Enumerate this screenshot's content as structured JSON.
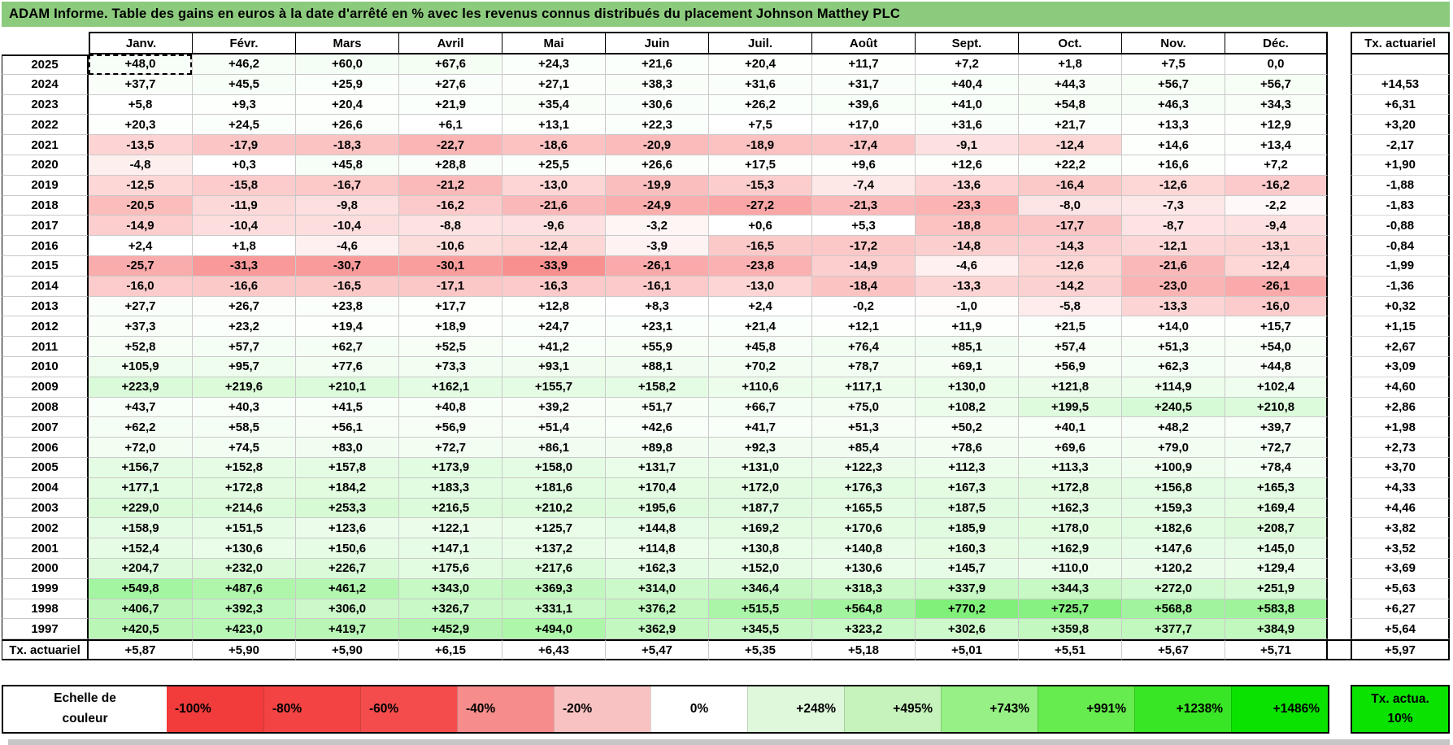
{
  "title": "ADAM Informe. Table des gains en euros à la date d'arrêté en % avec les revenus connus distribués du placement Johnson Matthey PLC",
  "chart_data": {
    "type": "heatmap",
    "title": "ADAM Informe. Table des gains en euros à la date d'arrêté en % avec les revenus connus distribués du placement Johnson Matthey PLC",
    "columns": [
      "Janv.",
      "Févr.",
      "Mars",
      "Avril",
      "Mai",
      "Juin",
      "Juil.",
      "Août",
      "Sept.",
      "Oct.",
      "Nov.",
      "Déc."
    ],
    "tx_column_header": "Tx. actuariel",
    "rows": [
      {
        "year": "2025",
        "values": [
          "+48,0",
          "+46,2",
          "+60,0",
          "+67,6",
          "+24,3",
          "+21,6",
          "+20,4",
          "+11,7",
          "+7,2",
          "+1,8",
          "+7,5",
          "0,0"
        ],
        "tx": ""
      },
      {
        "year": "2024",
        "values": [
          "+37,7",
          "+45,5",
          "+25,9",
          "+27,6",
          "+27,1",
          "+38,3",
          "+31,6",
          "+31,7",
          "+40,4",
          "+44,3",
          "+56,7",
          "+56,7"
        ],
        "tx": "+14,53"
      },
      {
        "year": "2023",
        "values": [
          "+5,8",
          "+9,3",
          "+20,4",
          "+21,9",
          "+35,4",
          "+30,6",
          "+26,2",
          "+39,6",
          "+41,0",
          "+54,8",
          "+46,3",
          "+34,3"
        ],
        "tx": "+6,31"
      },
      {
        "year": "2022",
        "values": [
          "+20,3",
          "+24,5",
          "+26,6",
          "+6,1",
          "+13,1",
          "+22,3",
          "+7,5",
          "+17,0",
          "+31,6",
          "+21,7",
          "+13,3",
          "+12,9"
        ],
        "tx": "+3,20"
      },
      {
        "year": "2021",
        "values": [
          "-13,5",
          "-17,9",
          "-18,3",
          "-22,7",
          "-18,6",
          "-20,9",
          "-18,9",
          "-17,4",
          "-9,1",
          "-12,4",
          "+14,6",
          "+13,4"
        ],
        "tx": "-2,17"
      },
      {
        "year": "2020",
        "values": [
          "-4,8",
          "+0,3",
          "+45,8",
          "+28,8",
          "+25,5",
          "+26,6",
          "+17,5",
          "+9,6",
          "+12,6",
          "+22,2",
          "+16,6",
          "+7,2"
        ],
        "tx": "+1,90"
      },
      {
        "year": "2019",
        "values": [
          "-12,5",
          "-15,8",
          "-16,7",
          "-21,2",
          "-13,0",
          "-19,9",
          "-15,3",
          "-7,4",
          "-13,6",
          "-16,4",
          "-12,6",
          "-16,2"
        ],
        "tx": "-1,88"
      },
      {
        "year": "2018",
        "values": [
          "-20,5",
          "-11,9",
          "-9,8",
          "-16,2",
          "-21,6",
          "-24,9",
          "-27,2",
          "-21,3",
          "-23,3",
          "-8,0",
          "-7,3",
          "-2,2"
        ],
        "tx": "-1,83"
      },
      {
        "year": "2017",
        "values": [
          "-14,9",
          "-10,4",
          "-10,4",
          "-8,8",
          "-9,6",
          "-3,2",
          "+0,6",
          "+5,3",
          "-18,8",
          "-17,7",
          "-8,7",
          "-9,4"
        ],
        "tx": "-0,88"
      },
      {
        "year": "2016",
        "values": [
          "+2,4",
          "+1,8",
          "-4,6",
          "-10,6",
          "-12,4",
          "-3,9",
          "-16,5",
          "-17,2",
          "-14,8",
          "-14,3",
          "-12,1",
          "-13,1"
        ],
        "tx": "-0,84"
      },
      {
        "year": "2015",
        "values": [
          "-25,7",
          "-31,3",
          "-30,7",
          "-30,1",
          "-33,9",
          "-26,1",
          "-23,8",
          "-14,9",
          "-4,6",
          "-12,6",
          "-21,6",
          "-12,4"
        ],
        "tx": "-1,99"
      },
      {
        "year": "2014",
        "values": [
          "-16,0",
          "-16,6",
          "-16,5",
          "-17,1",
          "-16,3",
          "-16,1",
          "-13,0",
          "-18,4",
          "-13,3",
          "-14,2",
          "-23,0",
          "-26,1"
        ],
        "tx": "-1,36"
      },
      {
        "year": "2013",
        "values": [
          "+27,7",
          "+26,7",
          "+23,8",
          "+17,7",
          "+12,8",
          "+8,3",
          "+2,4",
          "-0,2",
          "-1,0",
          "-5,8",
          "-13,3",
          "-16,0"
        ],
        "tx": "+0,32"
      },
      {
        "year": "2012",
        "values": [
          "+37,3",
          "+23,2",
          "+19,4",
          "+18,9",
          "+24,7",
          "+23,1",
          "+21,4",
          "+12,1",
          "+11,9",
          "+21,5",
          "+14,0",
          "+15,7"
        ],
        "tx": "+1,15"
      },
      {
        "year": "2011",
        "values": [
          "+52,8",
          "+57,7",
          "+62,7",
          "+52,5",
          "+41,2",
          "+55,9",
          "+45,8",
          "+76,4",
          "+85,1",
          "+57,4",
          "+51,3",
          "+54,0"
        ],
        "tx": "+2,67"
      },
      {
        "year": "2010",
        "values": [
          "+105,9",
          "+95,7",
          "+77,6",
          "+73,3",
          "+93,1",
          "+88,1",
          "+70,2",
          "+78,7",
          "+69,1",
          "+56,9",
          "+62,3",
          "+44,8"
        ],
        "tx": "+3,09"
      },
      {
        "year": "2009",
        "values": [
          "+223,9",
          "+219,6",
          "+210,1",
          "+162,1",
          "+155,7",
          "+158,2",
          "+110,6",
          "+117,1",
          "+130,0",
          "+121,8",
          "+114,9",
          "+102,4"
        ],
        "tx": "+4,60"
      },
      {
        "year": "2008",
        "values": [
          "+43,7",
          "+40,3",
          "+41,5",
          "+40,8",
          "+39,2",
          "+51,7",
          "+66,7",
          "+75,0",
          "+108,2",
          "+199,5",
          "+240,5",
          "+210,8"
        ],
        "tx": "+2,86"
      },
      {
        "year": "2007",
        "values": [
          "+62,2",
          "+58,5",
          "+56,1",
          "+56,9",
          "+51,4",
          "+42,6",
          "+41,7",
          "+51,3",
          "+50,2",
          "+40,1",
          "+48,2",
          "+39,7"
        ],
        "tx": "+1,98"
      },
      {
        "year": "2006",
        "values": [
          "+72,0",
          "+74,5",
          "+83,0",
          "+72,7",
          "+86,1",
          "+89,8",
          "+92,3",
          "+85,4",
          "+78,6",
          "+69,6",
          "+79,0",
          "+72,7"
        ],
        "tx": "+2,73"
      },
      {
        "year": "2005",
        "values": [
          "+156,7",
          "+152,8",
          "+157,8",
          "+173,9",
          "+158,0",
          "+131,7",
          "+131,0",
          "+122,3",
          "+112,3",
          "+113,3",
          "+100,9",
          "+78,4"
        ],
        "tx": "+3,70"
      },
      {
        "year": "2004",
        "values": [
          "+177,1",
          "+172,8",
          "+184,2",
          "+183,3",
          "+181,6",
          "+170,4",
          "+172,0",
          "+176,3",
          "+167,3",
          "+172,8",
          "+156,8",
          "+165,3"
        ],
        "tx": "+4,33"
      },
      {
        "year": "2003",
        "values": [
          "+229,0",
          "+214,6",
          "+253,3",
          "+216,5",
          "+210,2",
          "+195,6",
          "+187,7",
          "+165,5",
          "+187,5",
          "+162,3",
          "+159,3",
          "+169,4"
        ],
        "tx": "+4,46"
      },
      {
        "year": "2002",
        "values": [
          "+158,9",
          "+151,5",
          "+123,6",
          "+122,1",
          "+125,7",
          "+144,8",
          "+169,2",
          "+170,6",
          "+185,9",
          "+178,0",
          "+182,6",
          "+208,7"
        ],
        "tx": "+3,82"
      },
      {
        "year": "2001",
        "values": [
          "+152,4",
          "+130,6",
          "+150,6",
          "+147,1",
          "+137,2",
          "+114,8",
          "+130,8",
          "+140,8",
          "+160,3",
          "+162,9",
          "+147,6",
          "+145,0"
        ],
        "tx": "+3,52"
      },
      {
        "year": "2000",
        "values": [
          "+204,7",
          "+232,0",
          "+226,7",
          "+175,6",
          "+217,6",
          "+162,3",
          "+152,0",
          "+130,6",
          "+145,7",
          "+110,0",
          "+120,2",
          "+129,4"
        ],
        "tx": "+3,69"
      },
      {
        "year": "1999",
        "values": [
          "+549,8",
          "+487,6",
          "+461,2",
          "+343,0",
          "+369,3",
          "+314,0",
          "+346,4",
          "+318,3",
          "+337,9",
          "+344,3",
          "+272,0",
          "+251,9"
        ],
        "tx": "+5,63"
      },
      {
        "year": "1998",
        "values": [
          "+406,7",
          "+392,3",
          "+306,0",
          "+326,7",
          "+331,1",
          "+376,2",
          "+515,5",
          "+564,8",
          "+770,2",
          "+725,7",
          "+568,8",
          "+583,8"
        ],
        "tx": "+6,27"
      },
      {
        "year": "1997",
        "values": [
          "+420,5",
          "+423,0",
          "+419,7",
          "+452,9",
          "+494,0",
          "+362,9",
          "+345,5",
          "+323,2",
          "+302,6",
          "+359,8",
          "+377,7",
          "+384,9"
        ],
        "tx": "+5,64"
      }
    ],
    "footer": {
      "label": "Tx. actuariel",
      "values": [
        "+5,87",
        "+5,90",
        "+5,90",
        "+6,15",
        "+6,43",
        "+5,47",
        "+5,35",
        "+5,18",
        "+5,01",
        "+5,51",
        "+5,67",
        "+5,71"
      ],
      "tx": "+5,97"
    },
    "color_scale": {
      "zero_color": "#FFFFFF",
      "positive_max_color": "#0AE300",
      "negative_max_color": "#F43B3B",
      "positive_cap_pct": 1486,
      "negative_cap_pct": -60
    }
  },
  "selection": {
    "year": "2025",
    "month": "Janv."
  },
  "legend": {
    "label": "Echelle de couleur",
    "cells": [
      {
        "label": "-100%",
        "color": "#F23B3B",
        "align": "left"
      },
      {
        "label": "-80%",
        "color": "#F34343",
        "align": "left"
      },
      {
        "label": "-60%",
        "color": "#F44C4C",
        "align": "left"
      },
      {
        "label": "-40%",
        "color": "#F68C8C",
        "align": "left"
      },
      {
        "label": "-20%",
        "color": "#F9C2C2",
        "align": "left"
      },
      {
        "label": "0%",
        "color": "#FFFFFF",
        "align": "center"
      },
      {
        "label": "+248%",
        "color": "#DFF7DB",
        "align": "right"
      },
      {
        "label": "+495%",
        "color": "#C6F2BC",
        "align": "right"
      },
      {
        "label": "+743%",
        "color": "#97F085",
        "align": "right"
      },
      {
        "label": "+991%",
        "color": "#66EC4E",
        "align": "right"
      },
      {
        "label": "+1238%",
        "color": "#39E625",
        "align": "right"
      },
      {
        "label": "+1486%",
        "color": "#0AE300",
        "align": "right"
      }
    ],
    "tx_box": {
      "label": "Tx. actua. 10%",
      "color": "#0AE300"
    }
  },
  "colors": {
    "title_bg": "#8CCB7D",
    "grid_line": "#C9C9C9",
    "border": "#000000",
    "window_edge": "#C6C6C6"
  }
}
